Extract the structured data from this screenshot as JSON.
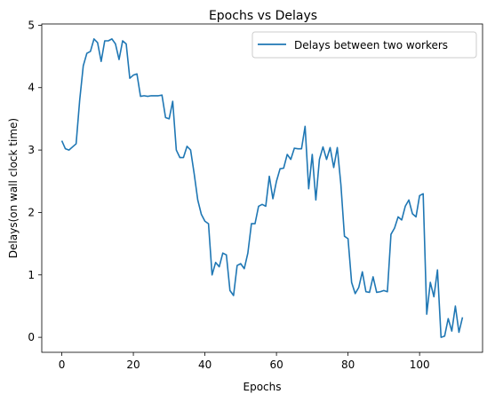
{
  "chart_data": {
    "type": "line",
    "title": "Epochs vs Delays",
    "xlabel": "Epochs",
    "ylabel": "Delays(on wall clock time)",
    "xlim": [
      -5.6,
      117.6
    ],
    "ylim": [
      -0.24,
      5.02
    ],
    "xticks": [
      0,
      20,
      40,
      60,
      80,
      100
    ],
    "xtick_labels": [
      "0",
      "20",
      "40",
      "60",
      "80",
      "100"
    ],
    "yticks": [
      0,
      1,
      2,
      3,
      4,
      5
    ],
    "ytick_labels": [
      "0",
      "1",
      "2",
      "3",
      "4",
      "5"
    ],
    "grid": false,
    "legend_position": "top-right",
    "series": [
      {
        "name": "Delays between two workers",
        "color": "#1f77b4",
        "x": [
          0,
          1,
          2,
          3,
          4,
          5,
          6,
          7,
          8,
          9,
          10,
          11,
          12,
          13,
          14,
          15,
          16,
          17,
          18,
          19,
          20,
          21,
          22,
          23,
          24,
          25,
          26,
          27,
          28,
          29,
          30,
          31,
          32,
          33,
          34,
          35,
          36,
          37,
          38,
          39,
          40,
          41,
          42,
          43,
          44,
          45,
          46,
          47,
          48,
          49,
          50,
          51,
          52,
          53,
          54,
          55,
          56,
          57,
          58,
          59,
          60,
          61,
          62,
          63,
          64,
          65,
          66,
          67,
          68,
          69,
          70,
          71,
          72,
          73,
          74,
          75,
          76,
          77,
          78,
          79,
          80,
          81,
          82,
          83,
          84,
          85,
          86,
          87,
          88,
          89,
          90,
          91,
          92,
          93,
          94,
          95,
          96,
          97,
          98,
          99,
          100,
          101,
          102,
          103,
          104,
          105,
          106,
          107,
          108,
          109,
          110,
          111,
          112
        ],
        "y": [
          3.15,
          3.02,
          3.0,
          3.05,
          3.1,
          3.8,
          4.35,
          4.55,
          4.58,
          4.78,
          4.72,
          4.42,
          4.75,
          4.75,
          4.78,
          4.7,
          4.45,
          4.75,
          4.7,
          4.15,
          4.2,
          4.22,
          3.86,
          3.87,
          3.86,
          3.87,
          3.87,
          3.87,
          3.88,
          3.52,
          3.5,
          3.78,
          3.0,
          2.88,
          2.88,
          3.06,
          3.0,
          2.62,
          2.2,
          1.97,
          1.86,
          1.82,
          1.0,
          1.2,
          1.13,
          1.35,
          1.32,
          0.75,
          0.67,
          1.15,
          1.18,
          1.1,
          1.35,
          1.82,
          1.82,
          2.1,
          2.13,
          2.1,
          2.58,
          2.22,
          2.5,
          2.7,
          2.71,
          2.93,
          2.85,
          3.03,
          3.02,
          3.02,
          3.38,
          2.38,
          2.93,
          2.2,
          2.85,
          3.05,
          2.85,
          3.04,
          2.72,
          3.04,
          2.45,
          1.62,
          1.58,
          0.88,
          0.7,
          0.8,
          1.05,
          0.73,
          0.72,
          0.97,
          0.72,
          0.73,
          0.75,
          0.73,
          1.65,
          1.75,
          1.93,
          1.88,
          2.1,
          2.2,
          1.98,
          1.93,
          2.27,
          2.3,
          0.37,
          0.88,
          0.65,
          1.08,
          0.0,
          0.02,
          0.3,
          0.1,
          0.5,
          0.08,
          0.32
        ]
      }
    ]
  }
}
